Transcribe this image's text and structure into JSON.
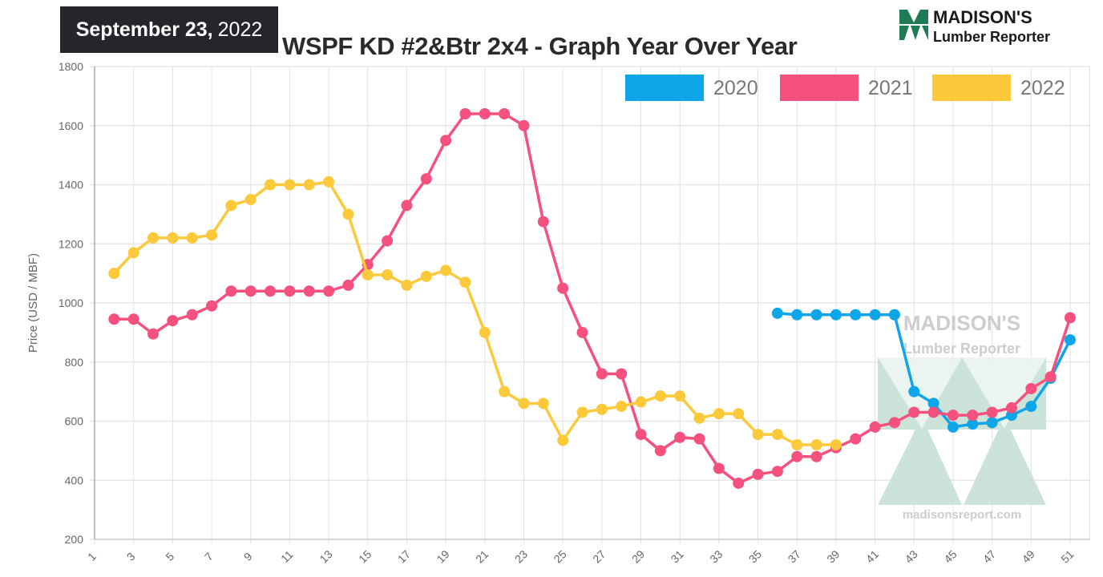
{
  "header": {
    "date_bold": "September 23,",
    "date_year": "2022",
    "title": "WSPF KD #2&Btr 2x4 - Graph Year Over Year"
  },
  "logo": {
    "line1": "MADISON'S",
    "line2": "Lumber Reporter"
  },
  "watermark": {
    "line1": "MADISON'S",
    "line2": "Lumber Reporter",
    "url": "madisonsreport.com"
  },
  "chart_data": {
    "type": "line",
    "title": "WSPF KD #2&Btr 2x4 - Graph Year Over Year",
    "xlabel": "",
    "ylabel": "Price (USD / MBF)",
    "xlim": [
      1,
      51
    ],
    "ylim": [
      200,
      1800
    ],
    "yticks": [
      200,
      400,
      600,
      800,
      1000,
      1200,
      1400,
      1600,
      1800
    ],
    "xticks": [
      1,
      3,
      5,
      7,
      9,
      11,
      13,
      15,
      17,
      19,
      21,
      23,
      25,
      27,
      29,
      31,
      33,
      35,
      37,
      39,
      41,
      43,
      45,
      47,
      49,
      51
    ],
    "grid": true,
    "legend_position": "top-right",
    "series": [
      {
        "name": "2020",
        "color": "#0ea5e9",
        "x_start": 36,
        "values": [
          965,
          960,
          960,
          960,
          960,
          960,
          960,
          700,
          660,
          580,
          590,
          595,
          620,
          650,
          745,
          875
        ]
      },
      {
        "name": "2021",
        "color": "#f4517e",
        "x_start": 2,
        "values": [
          945,
          945,
          895,
          940,
          960,
          990,
          1040,
          1040,
          1040,
          1040,
          1040,
          1040,
          1060,
          1130,
          1210,
          1330,
          1420,
          1550,
          1640,
          1640,
          1640,
          1600,
          1275,
          1050,
          900,
          760,
          760,
          555,
          500,
          545,
          540,
          440,
          390,
          420,
          430,
          480,
          480,
          510,
          540,
          580,
          595,
          630,
          630,
          620,
          620,
          630,
          645,
          710,
          750,
          950
        ]
      },
      {
        "name": "2022",
        "color": "#fbc93a",
        "x_start": 2,
        "values": [
          1100,
          1170,
          1220,
          1220,
          1220,
          1230,
          1330,
          1350,
          1400,
          1400,
          1400,
          1410,
          1300,
          1095,
          1095,
          1060,
          1090,
          1110,
          1070,
          900,
          700,
          660,
          660,
          535,
          630,
          640,
          650,
          665,
          685,
          685,
          610,
          625,
          625,
          555,
          555,
          520,
          520,
          520
        ]
      }
    ]
  }
}
